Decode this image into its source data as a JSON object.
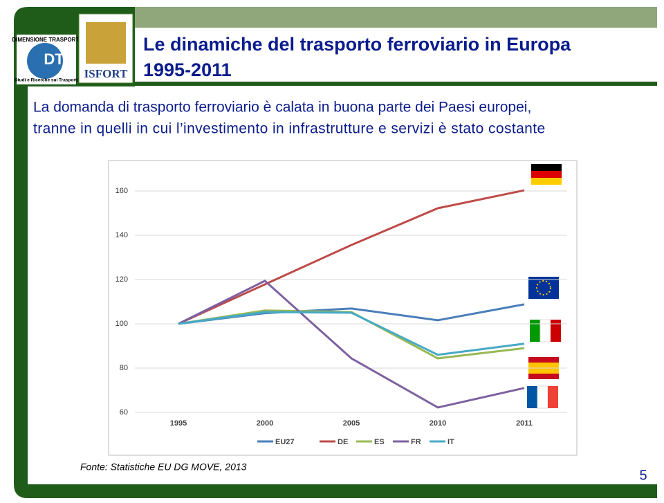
{
  "header": {
    "title_lines": [
      "Le dinamiche del trasporto ferroviario in Europa",
      "1995-2011"
    ],
    "logo_left": [
      "DIMENSIONE TRASPORTI",
      "DT",
      "Studi e Ricerche sui Trasporti"
    ],
    "logo_right": "ISFORT"
  },
  "subtitle_lines": [
    "La domanda di trasporto ferroviario è calata in buona parte dei Paesi europei,",
    "tranne in quelli in cui l’investimento in infrastrutture e servizi è stato costante"
  ],
  "chart_data": {
    "type": "line",
    "categories": [
      "1995",
      "2000",
      "2005",
      "2010",
      "2011"
    ],
    "series": [
      {
        "name": "EU27",
        "color": "#4a7ebb",
        "values": [
          100,
          104.8,
          106.9,
          101.6,
          108.8
        ]
      },
      {
        "name": "DE",
        "color": "#be4b48",
        "values": [
          100,
          117.8,
          135.6,
          152.2,
          160.3
        ]
      },
      {
        "name": "ES",
        "color": "#98b954",
        "values": [
          100,
          106,
          105.3,
          84.4,
          89
        ]
      },
      {
        "name": "FR",
        "color": "#7d60a0",
        "values": [
          100,
          119.4,
          84.4,
          62.2,
          71
        ]
      },
      {
        "name": "IT",
        "color": "#46aac5",
        "values": [
          100,
          105.3,
          105,
          86,
          91
        ]
      }
    ],
    "ylim": [
      60,
      160
    ],
    "yticks": [
      60,
      80,
      100,
      120,
      140,
      160
    ],
    "grid": true,
    "legend": "bottom"
  },
  "footer": {
    "source": "Fonte: Statistiche EU DG MOVE, 2013",
    "page": "5"
  }
}
